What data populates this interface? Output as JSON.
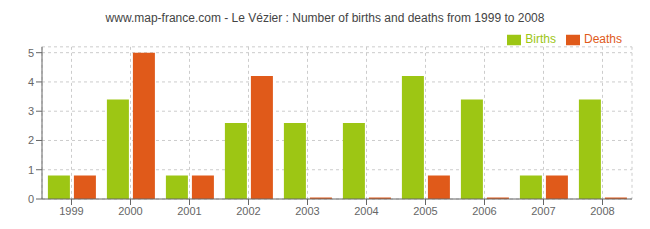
{
  "chart_data": {
    "type": "bar",
    "title": "www.map-france.com - Le Vézier : Number of births and deaths from 1999 to 2008",
    "categories": [
      "1999",
      "2000",
      "2001",
      "2002",
      "2003",
      "2004",
      "2005",
      "2006",
      "2007",
      "2008"
    ],
    "series": [
      {
        "name": "Births",
        "color": "#9dc614",
        "values": [
          0.8,
          3.4,
          0.8,
          2.6,
          2.6,
          2.6,
          4.2,
          3.4,
          0.8,
          3.4
        ]
      },
      {
        "name": "Deaths",
        "color": "#e05a1a",
        "values": [
          0.8,
          5.0,
          0.8,
          4.2,
          0.05,
          0.05,
          0.8,
          0.05,
          0.8,
          0.05
        ]
      }
    ],
    "ylim": [
      0,
      5.2
    ],
    "yticks": [
      0,
      1,
      2,
      3,
      4,
      5
    ],
    "grid": true,
    "legend": "upper right"
  }
}
